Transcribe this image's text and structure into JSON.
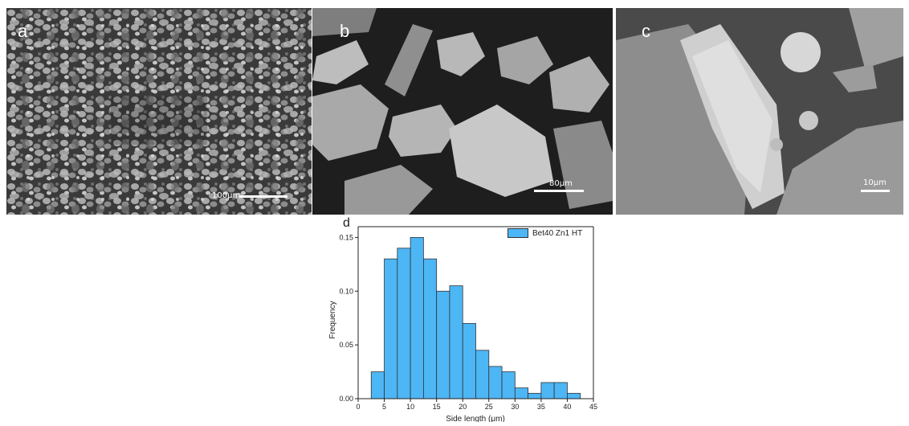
{
  "panels": [
    {
      "letter": "a",
      "scale": "100μm"
    },
    {
      "letter": "b",
      "scale": "80μm"
    },
    {
      "letter": "c",
      "scale": "10μm"
    }
  ],
  "chart_data": {
    "panel_letter": "d",
    "type": "bar",
    "xlabel": "Side length (μm)",
    "ylabel": "Frequency",
    "xlim": [
      0,
      45
    ],
    "ylim": [
      0,
      0.16
    ],
    "xticks": [
      0,
      5,
      10,
      15,
      20,
      25,
      30,
      35,
      40,
      45
    ],
    "yticks": [
      "0.00",
      "0.05",
      "0.10",
      "0.15"
    ],
    "legend": "Bet40 Zn1 HT",
    "legend_position": "top-right",
    "bin_width": 2.5,
    "bins": [
      {
        "x": 2.5,
        "value": 0.025
      },
      {
        "x": 5.0,
        "value": 0.13
      },
      {
        "x": 7.5,
        "value": 0.14
      },
      {
        "x": 10.0,
        "value": 0.15
      },
      {
        "x": 12.5,
        "value": 0.13
      },
      {
        "x": 15.0,
        "value": 0.1
      },
      {
        "x": 17.5,
        "value": 0.105
      },
      {
        "x": 20.0,
        "value": 0.07
      },
      {
        "x": 22.5,
        "value": 0.045
      },
      {
        "x": 25.0,
        "value": 0.03
      },
      {
        "x": 27.5,
        "value": 0.025
      },
      {
        "x": 30.0,
        "value": 0.01
      },
      {
        "x": 32.5,
        "value": 0.005
      },
      {
        "x": 35.0,
        "value": 0.015
      },
      {
        "x": 37.5,
        "value": 0.015
      },
      {
        "x": 40.0,
        "value": 0.005
      }
    ],
    "colors": {
      "bar": "#4db6f5",
      "edge": "#333333"
    }
  }
}
